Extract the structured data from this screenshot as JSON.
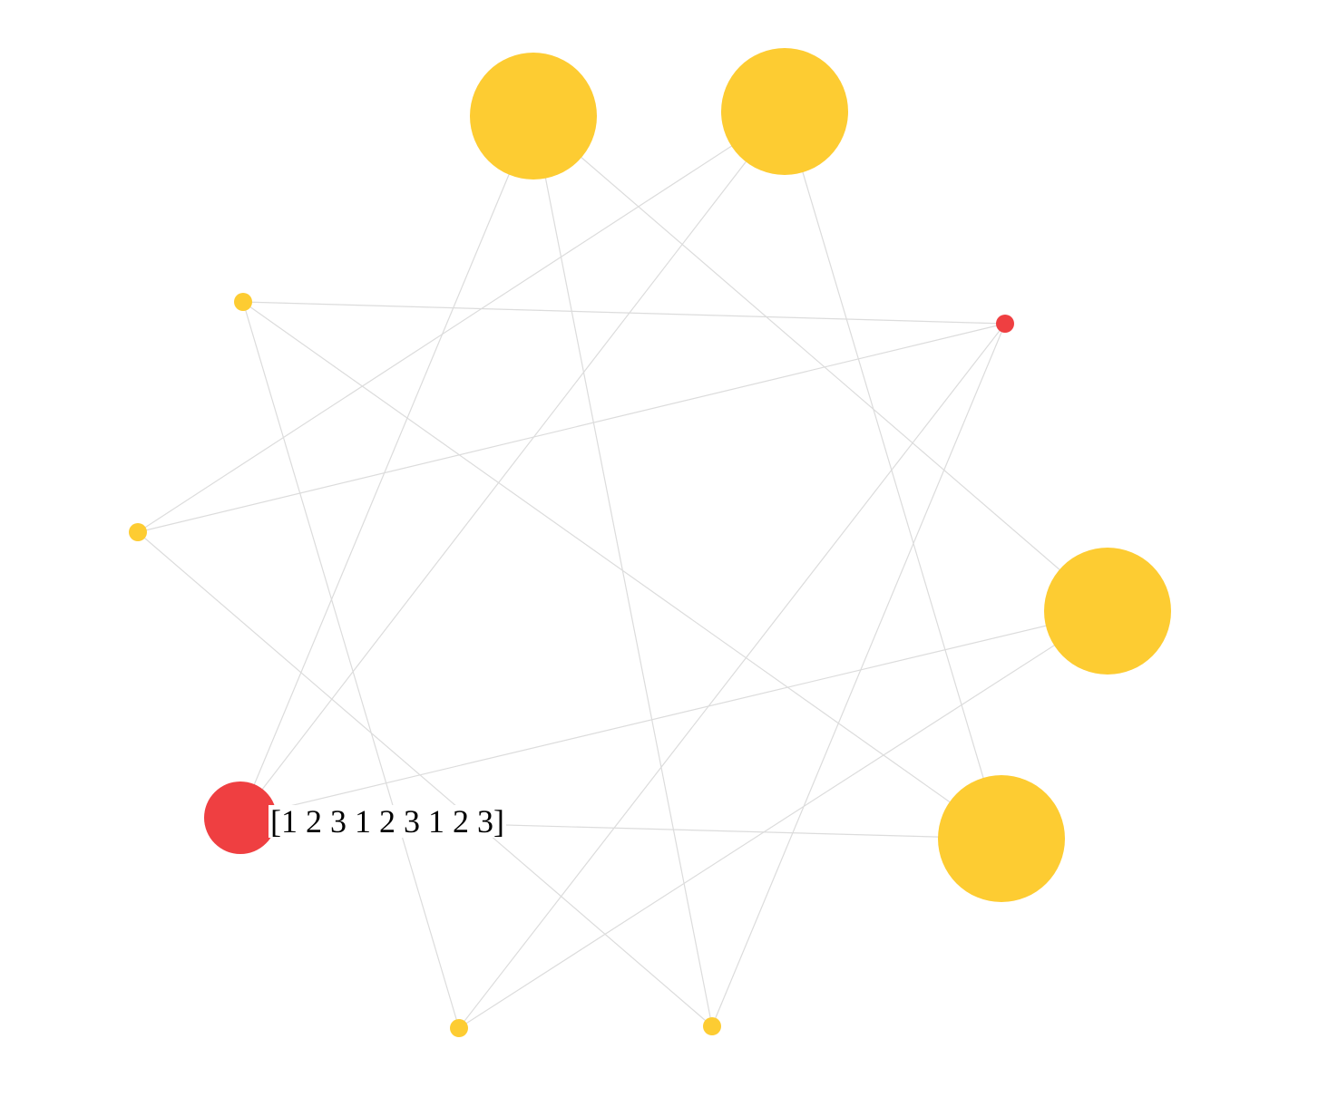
{
  "graph": {
    "colors": {
      "background": "#ffffff",
      "edge": "#dcdcdc",
      "highlight_node": "#ef3f41",
      "regular_node": "#fdcc32"
    },
    "label": "[1 2 3 1 2 3 1 2 3]",
    "nodes": [
      {
        "id": "n0",
        "name": "node-top-left-large",
        "size": "large",
        "color": "#fdcc32"
      },
      {
        "id": "n1",
        "name": "node-top-right-large",
        "size": "large",
        "color": "#fdcc32"
      },
      {
        "id": "n2",
        "name": "node-upper-left-small",
        "size": "small",
        "color": "#fdcc32"
      },
      {
        "id": "n3",
        "name": "node-upper-right-small-red",
        "size": "small",
        "color": "#ef3f41"
      },
      {
        "id": "n4",
        "name": "node-left-small",
        "size": "small",
        "color": "#fdcc32"
      },
      {
        "id": "n5",
        "name": "node-right-large",
        "size": "large",
        "color": "#fdcc32"
      },
      {
        "id": "n6",
        "name": "node-lower-left-red",
        "size": "medium",
        "color": "#ef3f41"
      },
      {
        "id": "n7",
        "name": "node-lower-right-large",
        "size": "large",
        "color": "#fdcc32"
      },
      {
        "id": "n8",
        "name": "node-bottom-left-small",
        "size": "small",
        "color": "#fdcc32"
      },
      {
        "id": "n9",
        "name": "node-bottom-right-small",
        "size": "small",
        "color": "#fdcc32"
      }
    ],
    "edges": [
      [
        "n0",
        "n6"
      ],
      [
        "n0",
        "n9"
      ],
      [
        "n0",
        "n5"
      ],
      [
        "n1",
        "n4"
      ],
      [
        "n1",
        "n6"
      ],
      [
        "n1",
        "n7"
      ],
      [
        "n2",
        "n3"
      ],
      [
        "n2",
        "n8"
      ],
      [
        "n2",
        "n7"
      ],
      [
        "n3",
        "n4"
      ],
      [
        "n3",
        "n8"
      ],
      [
        "n3",
        "n9"
      ],
      [
        "n4",
        "n9"
      ],
      [
        "n5",
        "n6"
      ],
      [
        "n5",
        "n8"
      ],
      [
        "n6",
        "n7"
      ]
    ]
  }
}
